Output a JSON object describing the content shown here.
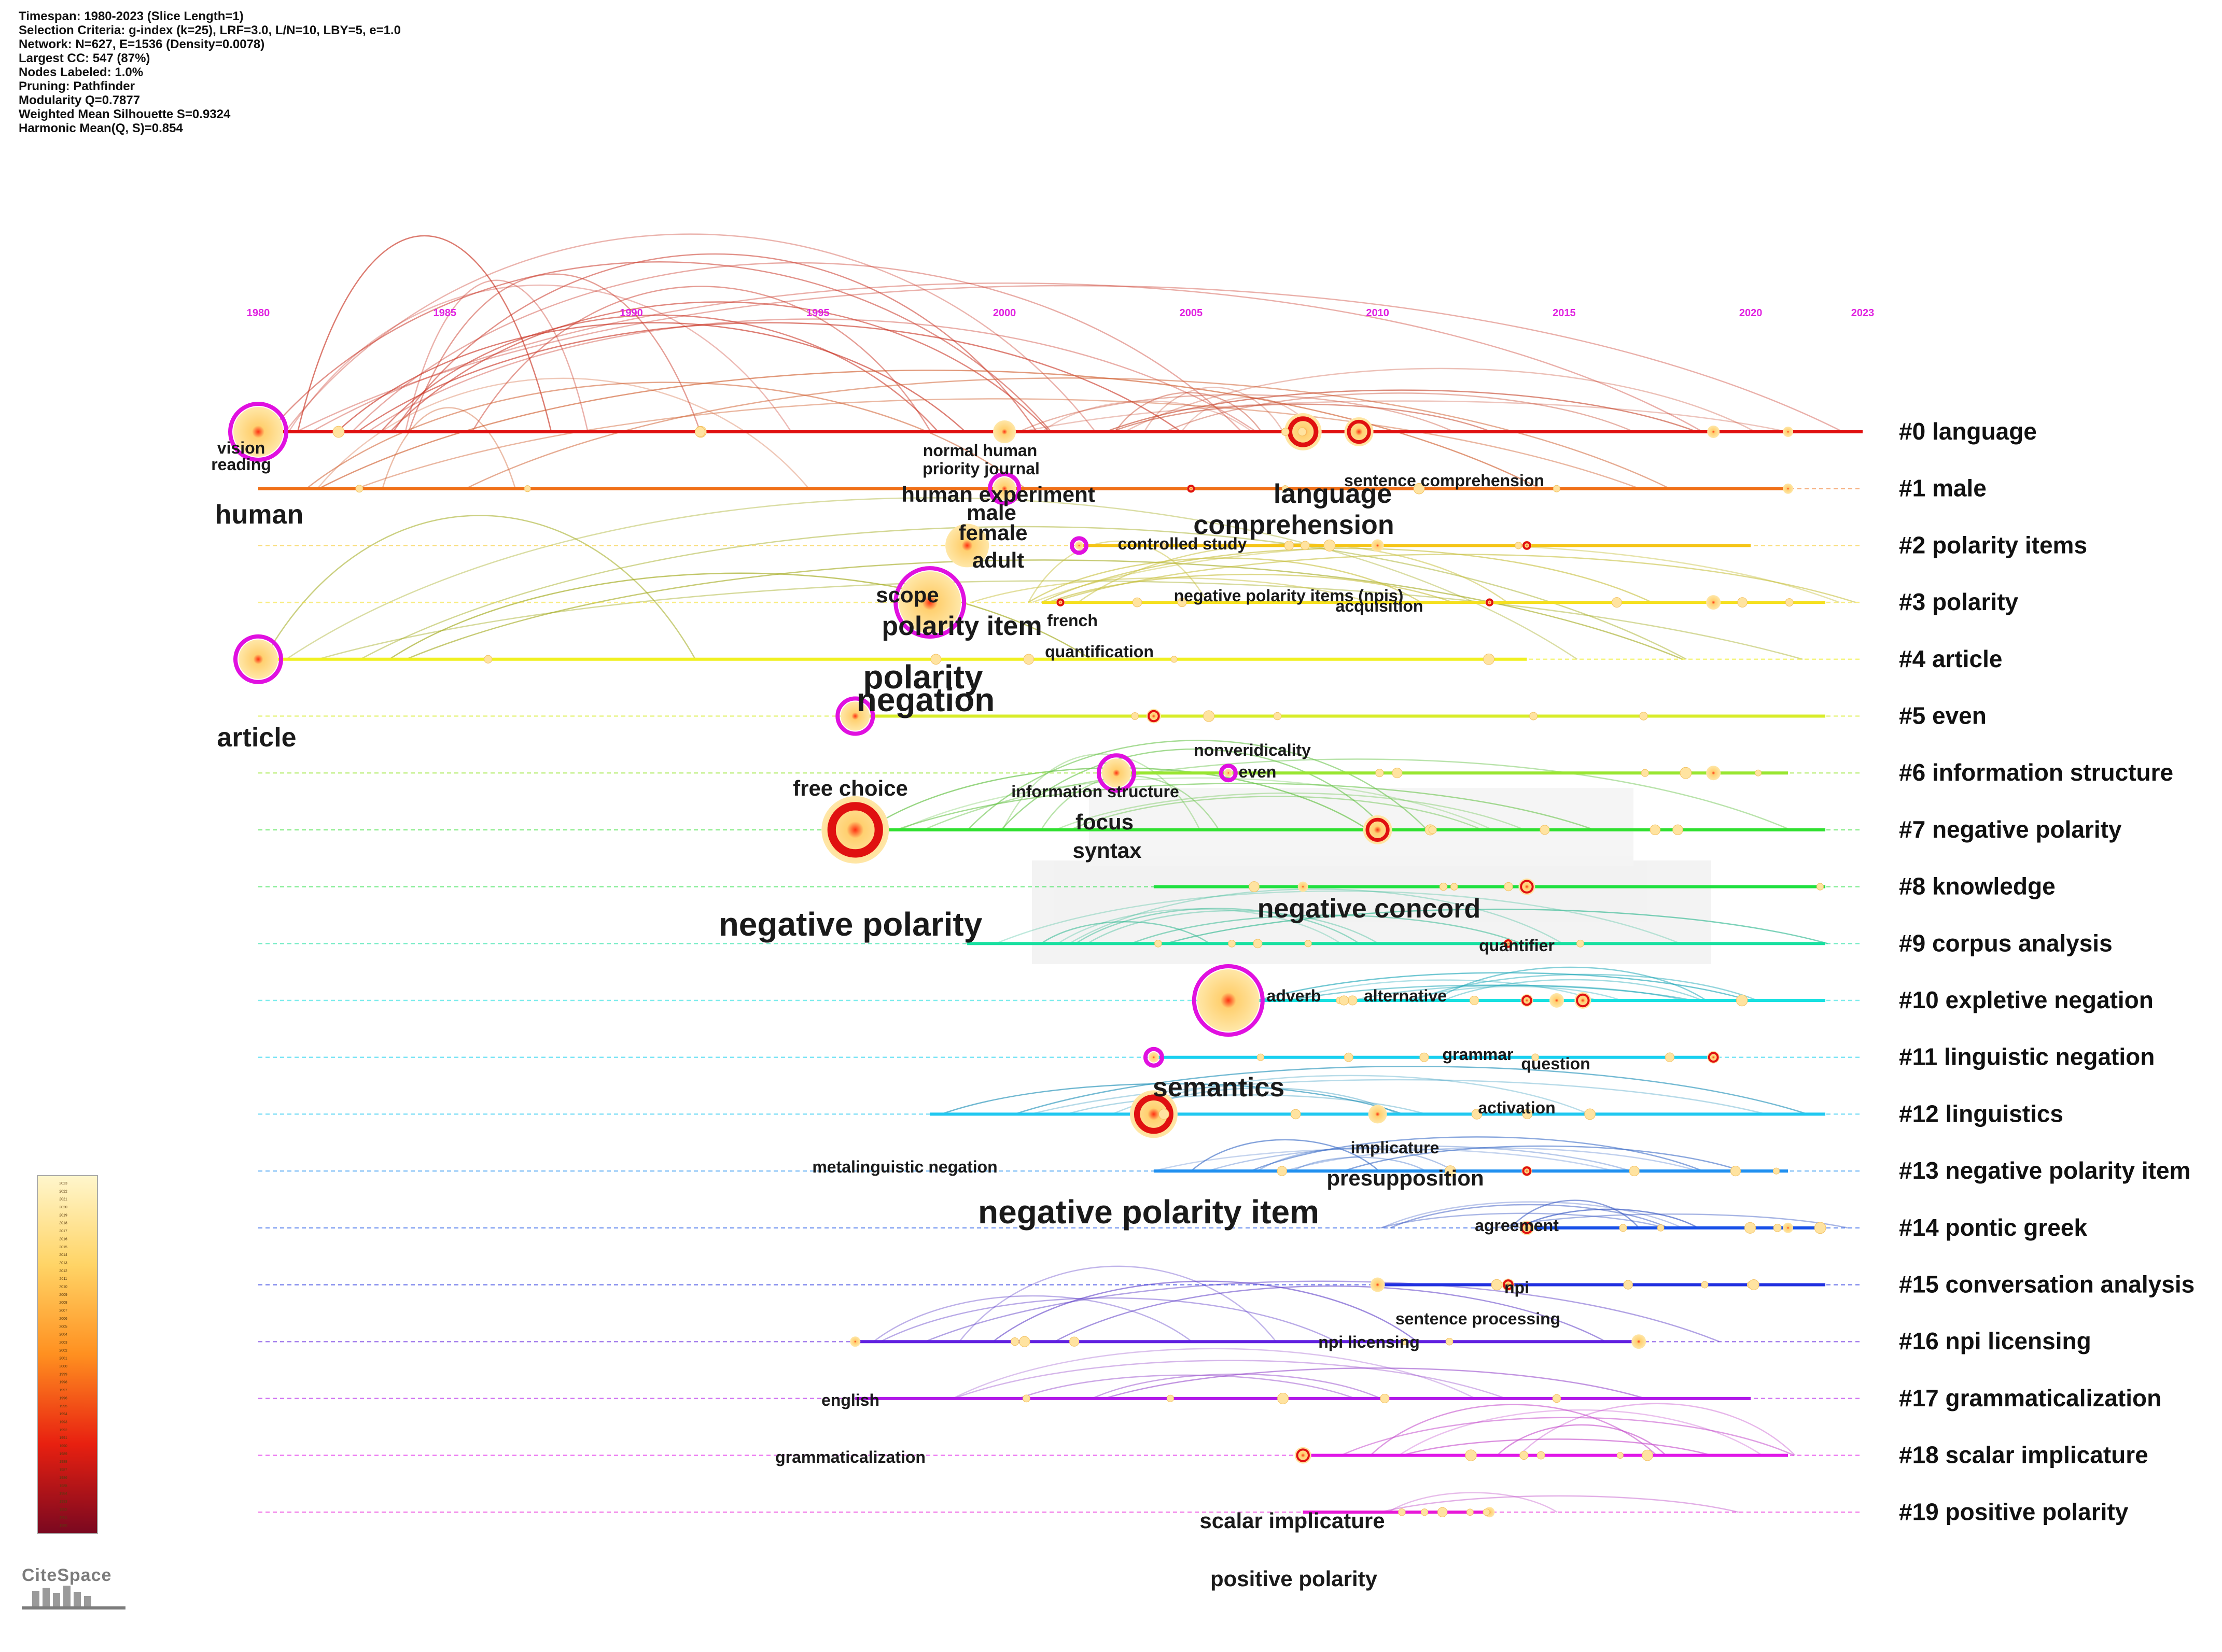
{
  "info_lines": [
    "Timespan: 1980-2023 (Slice Length=1)",
    "Selection Criteria: g-index (k=25), LRF=3.0, L/N=10, LBY=5, e=1.0",
    "Network: N=627, E=1536 (Density=0.0078)",
    "Largest CC: 547 (87%)",
    "Nodes Labeled: 1.0%",
    "Pruning: Pathfinder",
    "Modularity Q=0.7877",
    "Weighted Mean Silhouette S=0.9324",
    "Harmonic Mean(Q, S)=0.854"
  ],
  "years": [
    "1980",
    "1985",
    "1990",
    "1995",
    "2000",
    "2005",
    "2010",
    "2015",
    "2020",
    "2023"
  ],
  "clusters": [
    {
      "label": "#0 language",
      "color": "#e01010",
      "start": 1980,
      "end": 2023
    },
    {
      "label": "#1 male",
      "color": "#f07018",
      "start": 1980,
      "end": 2021
    },
    {
      "label": "#2 polarity items",
      "color": "#f5c518",
      "start": 2002,
      "end": 2020
    },
    {
      "label": "#3 polarity",
      "color": "#f5e020",
      "start": 2001,
      "end": 2022
    },
    {
      "label": "#4 article",
      "color": "#f0f020",
      "start": 1980,
      "end": 2014
    },
    {
      "label": "#5 even",
      "color": "#d8ec28",
      "start": 1996,
      "end": 2022
    },
    {
      "label": "#6 information structure",
      "color": "#98e630",
      "start": 2003,
      "end": 2021
    },
    {
      "label": "#7 negative polarity",
      "color": "#30e030",
      "start": 1996,
      "end": 2022
    },
    {
      "label": "#8 knowledge",
      "color": "#20e040",
      "start": 2004,
      "end": 2022
    },
    {
      "label": "#9 corpus analysis",
      "color": "#18e0a0",
      "start": 1999,
      "end": 2022
    },
    {
      "label": "#10 expletive negation",
      "color": "#18e0e0",
      "start": 2006,
      "end": 2022
    },
    {
      "label": "#11 linguistic negation",
      "color": "#18d0f0",
      "start": 2004,
      "end": 2019
    },
    {
      "label": "#12 linguistics",
      "color": "#20c8f0",
      "start": 1998,
      "end": 2022
    },
    {
      "label": "#13 negative polarity item",
      "color": "#2090f0",
      "start": 2004,
      "end": 2021
    },
    {
      "label": "#14 pontic greek",
      "color": "#1850e8",
      "start": 2014,
      "end": 2022
    },
    {
      "label": "#15 conversation analysis",
      "color": "#2030e0",
      "start": 2010,
      "end": 2022
    },
    {
      "label": "#16 npi licensing",
      "color": "#6020e0",
      "start": 1996,
      "end": 2017
    },
    {
      "label": "#17 grammaticalization",
      "color": "#b018e8",
      "start": 1996,
      "end": 2020
    },
    {
      "label": "#18 scalar implicature",
      "color": "#e018e8",
      "start": 2008,
      "end": 2021
    },
    {
      "label": "#19 positive polarity",
      "color": "#e818d8",
      "start": 2008,
      "end": 2013
    }
  ],
  "terms": [
    {
      "text": "vision",
      "size": "s"
    },
    {
      "text": "reading",
      "size": "s"
    },
    {
      "text": "human",
      "size": "l"
    },
    {
      "text": "normal human",
      "size": "s"
    },
    {
      "text": "priority journal",
      "size": "s"
    },
    {
      "text": "human experiment",
      "size": "m"
    },
    {
      "text": "male",
      "size": "m"
    },
    {
      "text": "female",
      "size": "m"
    },
    {
      "text": "adult",
      "size": "m"
    },
    {
      "text": "language",
      "size": "l"
    },
    {
      "text": "comprehension",
      "size": "l"
    },
    {
      "text": "sentence comprehension",
      "size": "s"
    },
    {
      "text": "controlled study",
      "size": "s"
    },
    {
      "text": "scope",
      "size": "m"
    },
    {
      "text": "polarity item",
      "size": "l"
    },
    {
      "text": "french",
      "size": "s"
    },
    {
      "text": "negative polarity items (npis)",
      "size": "s"
    },
    {
      "text": "acquisition",
      "size": "s"
    },
    {
      "text": "quantification",
      "size": "s"
    },
    {
      "text": "polarity",
      "size": "xl"
    },
    {
      "text": "negation",
      "size": "xl"
    },
    {
      "text": "article",
      "size": "l"
    },
    {
      "text": "nonveridicality",
      "size": "s"
    },
    {
      "text": "even",
      "size": "s"
    },
    {
      "text": "free choice",
      "size": "m"
    },
    {
      "text": "information structure",
      "size": "s"
    },
    {
      "text": "focus",
      "size": "m"
    },
    {
      "text": "syntax",
      "size": "m"
    },
    {
      "text": "negative concord",
      "size": "l"
    },
    {
      "text": "negative polarity",
      "size": "xl"
    },
    {
      "text": "quantifier",
      "size": "s"
    },
    {
      "text": "adverb",
      "size": "s"
    },
    {
      "text": "alternative",
      "size": "s"
    },
    {
      "text": "grammar",
      "size": "s"
    },
    {
      "text": "question",
      "size": "s"
    },
    {
      "text": "semantics",
      "size": "l"
    },
    {
      "text": "activation",
      "size": "s"
    },
    {
      "text": "implicature",
      "size": "s"
    },
    {
      "text": "metalinguistic negation",
      "size": "s"
    },
    {
      "text": "presupposition",
      "size": "m"
    },
    {
      "text": "negative polarity item",
      "size": "xl"
    },
    {
      "text": "agreement",
      "size": "s"
    },
    {
      "text": "npi",
      "size": "s"
    },
    {
      "text": "sentence processing",
      "size": "s"
    },
    {
      "text": "npi licensing",
      "size": "s"
    },
    {
      "text": "english",
      "size": "s"
    },
    {
      "text": "grammaticalization",
      "size": "s"
    },
    {
      "text": "scalar implicature",
      "size": "m"
    },
    {
      "text": "positive polarity",
      "size": "m"
    }
  ],
  "colors": {
    "year_labels": "#e020e0",
    "node_ring_burst": "#e01010",
    "node_ring_centrality": "#e010e0",
    "node_fill": "#ffe08a",
    "legend_top": "#fff4c8",
    "legend_bottom": "#8b0a1a"
  },
  "legend_year_range": [
    1980,
    2023
  ],
  "brand": "CiteSpace"
}
